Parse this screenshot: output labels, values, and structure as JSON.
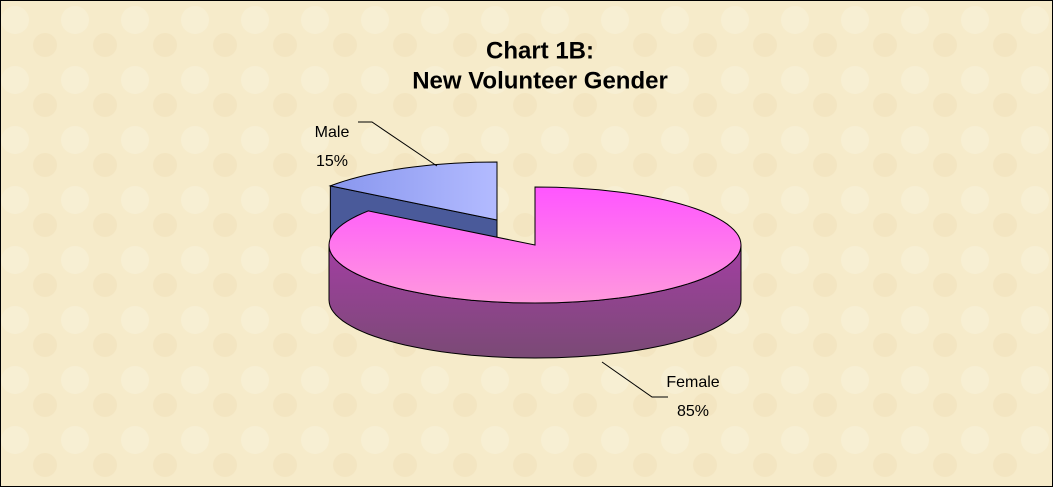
{
  "chart_data": {
    "type": "pie3d",
    "title": [
      "Chart 1B:",
      "New Volunteer Gender"
    ],
    "categories": [
      "Male",
      "Female"
    ],
    "values": [
      15,
      85
    ],
    "value_labels": [
      "15%",
      "85%"
    ],
    "colors": [
      "#9fa8ff",
      "#ff66ff"
    ],
    "exploded": [
      true,
      false
    ]
  }
}
